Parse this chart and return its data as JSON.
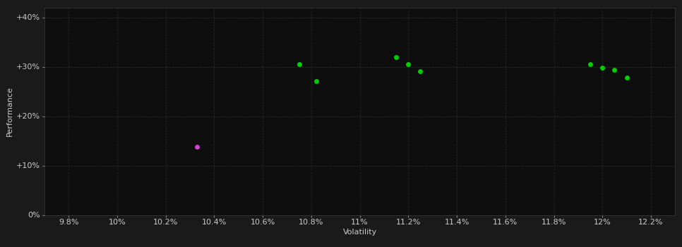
{
  "background_color": "#1a1a1a",
  "plot_bg_color": "#0d0d0d",
  "grid_color": "#3a3a3a",
  "text_color": "#cccccc",
  "xlabel": "Volatility",
  "ylabel": "Performance",
  "xlim": [
    0.097,
    0.123
  ],
  "ylim": [
    0.0,
    0.42
  ],
  "xticks": [
    0.098,
    0.1,
    0.102,
    0.104,
    0.106,
    0.108,
    0.11,
    0.112,
    0.114,
    0.116,
    0.118,
    0.12,
    0.122
  ],
  "yticks": [
    0.0,
    0.1,
    0.2,
    0.3,
    0.4
  ],
  "ytick_labels": [
    "0%",
    "+10%",
    "+20%",
    "+30%",
    "+40%"
  ],
  "xtick_labels": [
    "9.8%",
    "10%",
    "10.2%",
    "10.4%",
    "10.6%",
    "10.8%",
    "11%",
    "11.2%",
    "11.4%",
    "11.6%",
    "11.8%",
    "12%",
    "12.2%"
  ],
  "green_points": [
    [
      0.1075,
      0.305
    ],
    [
      0.1082,
      0.271
    ],
    [
      0.1115,
      0.32
    ],
    [
      0.112,
      0.305
    ],
    [
      0.1125,
      0.291
    ],
    [
      0.1195,
      0.305
    ],
    [
      0.12,
      0.298
    ],
    [
      0.1205,
      0.293
    ],
    [
      0.121,
      0.278
    ]
  ],
  "magenta_points": [
    [
      0.1033,
      0.138
    ]
  ],
  "green_color": "#00cc00",
  "magenta_color": "#cc44cc",
  "marker_size": 25,
  "font_size_axis_label": 8,
  "font_size_tick": 8
}
